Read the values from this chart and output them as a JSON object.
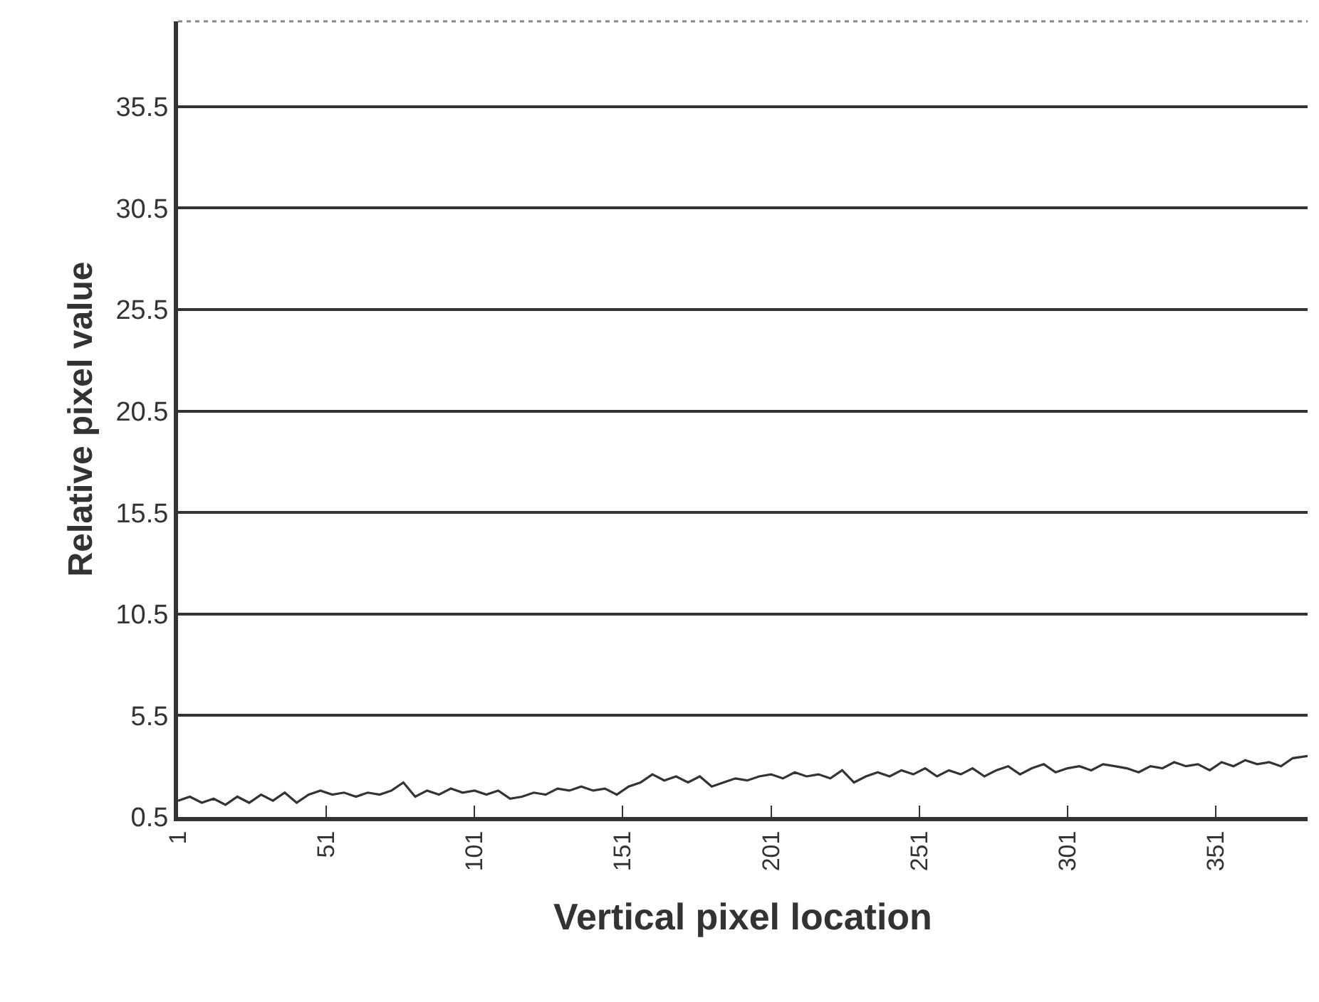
{
  "chart_data": {
    "type": "line",
    "xlabel": "Vertical pixel location",
    "ylabel": "Relative pixel value",
    "xlim": [
      1,
      382
    ],
    "xticks": [
      1,
      51,
      101,
      151,
      201,
      251,
      301,
      351
    ],
    "ylim": [
      0.5,
      39.7
    ],
    "yticks": [
      0.5,
      5.5,
      10.5,
      15.5,
      20.5,
      25.5,
      30.5,
      35.5
    ],
    "grid": "y",
    "marker": "none",
    "line_style": "solid",
    "x": [
      1,
      5,
      9,
      13,
      17,
      21,
      25,
      29,
      33,
      37,
      41,
      45,
      49,
      53,
      57,
      61,
      65,
      69,
      73,
      77,
      81,
      85,
      89,
      93,
      97,
      101,
      105,
      109,
      113,
      117,
      121,
      125,
      129,
      133,
      137,
      141,
      145,
      149,
      153,
      157,
      161,
      165,
      169,
      173,
      177,
      181,
      185,
      189,
      193,
      197,
      201,
      205,
      209,
      213,
      217,
      221,
      225,
      229,
      233,
      237,
      241,
      245,
      249,
      253,
      257,
      261,
      265,
      269,
      273,
      277,
      281,
      285,
      289,
      293,
      297,
      301,
      305,
      309,
      313,
      317,
      321,
      325,
      329,
      333,
      337,
      341,
      345,
      349,
      353,
      357,
      361,
      365,
      369,
      373,
      377,
      382
    ],
    "series": [
      {
        "color": "#333333",
        "values": [
          1.3,
          1.5,
          1.2,
          1.4,
          1.1,
          1.5,
          1.2,
          1.6,
          1.3,
          1.7,
          1.2,
          1.6,
          1.8,
          1.6,
          1.7,
          1.5,
          1.7,
          1.6,
          1.8,
          2.2,
          1.5,
          1.8,
          1.6,
          1.9,
          1.7,
          1.8,
          1.6,
          1.8,
          1.4,
          1.5,
          1.7,
          1.6,
          1.9,
          1.8,
          2.0,
          1.8,
          1.9,
          1.6,
          2.0,
          2.2,
          2.6,
          2.3,
          2.5,
          2.2,
          2.5,
          2.0,
          2.2,
          2.4,
          2.3,
          2.5,
          2.6,
          2.4,
          2.7,
          2.5,
          2.6,
          2.4,
          2.8,
          2.2,
          2.5,
          2.7,
          2.5,
          2.8,
          2.6,
          2.9,
          2.5,
          2.8,
          2.6,
          2.9,
          2.5,
          2.8,
          3.0,
          2.6,
          2.9,
          3.1,
          2.7,
          2.9,
          3.0,
          2.8,
          3.1,
          3.0,
          2.9,
          2.7,
          3.0,
          2.9,
          3.2,
          3.0,
          3.1,
          2.8,
          3.2,
          3.0,
          3.3,
          3.1,
          3.2,
          3.0,
          3.4,
          3.5
        ]
      }
    ]
  }
}
